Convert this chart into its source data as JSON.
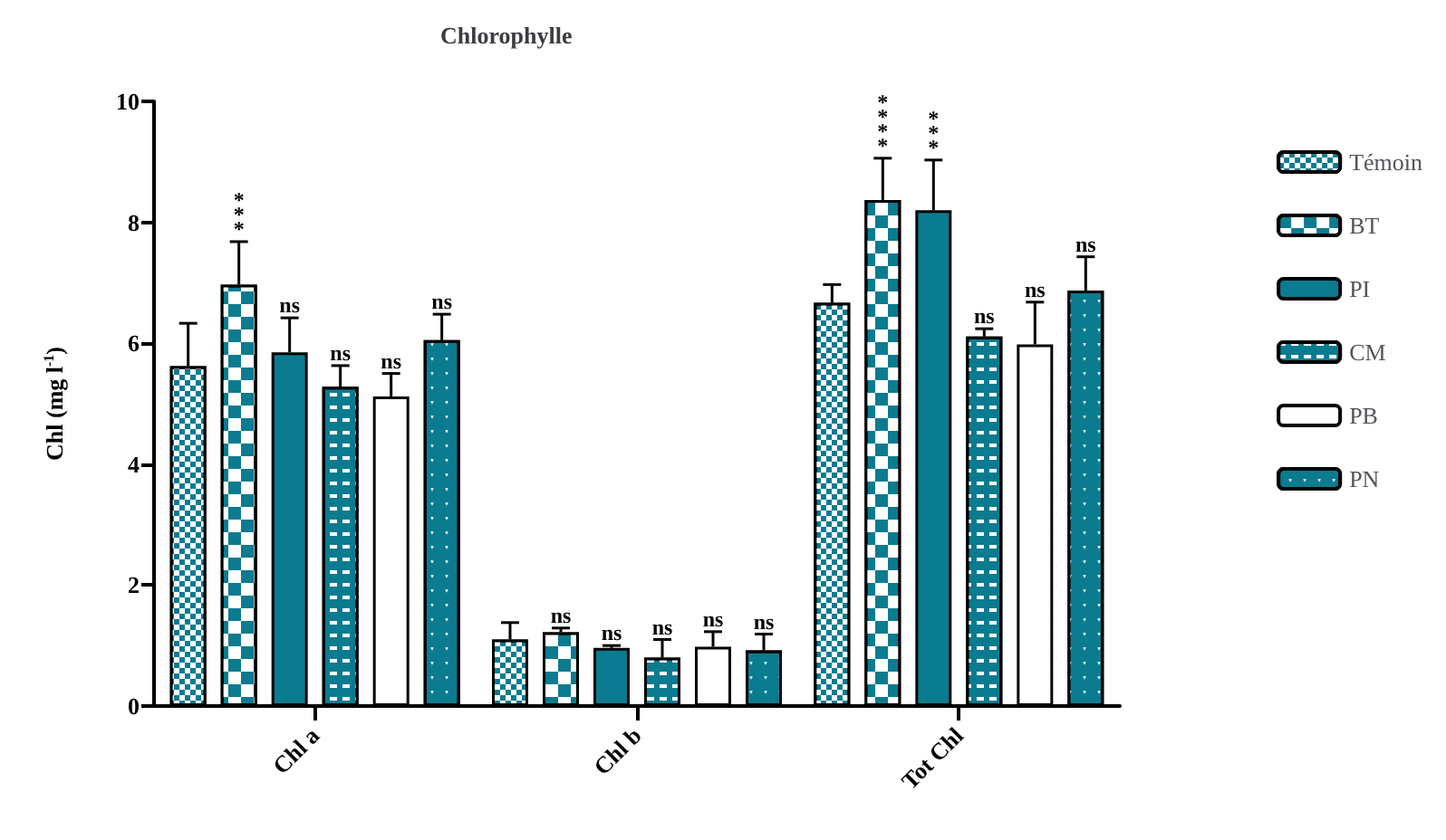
{
  "chart_data": {
    "type": "bar",
    "title": "Chlorophylle",
    "ylabel": "Chl (mg l$^{-1}$)",
    "categories": [
      "Chl a",
      "Chl b",
      "Tot Chl"
    ],
    "series": [
      {
        "name": "Témoin",
        "color": "#0b7b90",
        "values": [
          5.62,
          1.1,
          6.67
        ],
        "errors": [
          0.71,
          0.28,
          0.3
        ],
        "value_labels": [
          null,
          null,
          null
        ]
      },
      {
        "name": "BT",
        "color": "#0b7b90",
        "values": [
          6.97,
          1.22,
          8.37
        ],
        "errors": [
          0.71,
          0.07,
          0.69
        ],
        "value_labels": [
          "***",
          "ns",
          "****"
        ]
      },
      {
        "name": "PI",
        "color": "#0b7b90",
        "values": [
          5.85,
          0.96,
          8.2
        ],
        "errors": [
          0.57,
          0.04,
          0.83
        ],
        "value_labels": [
          "ns",
          "ns",
          "***"
        ]
      },
      {
        "name": "CM",
        "color": "#0b7b90",
        "values": [
          5.28,
          0.8,
          6.11
        ],
        "errors": [
          0.35,
          0.3,
          0.13
        ],
        "value_labels": [
          "ns",
          "ns",
          "ns"
        ]
      },
      {
        "name": "PB",
        "color": "#ffffff",
        "values": [
          5.12,
          0.98,
          5.98
        ],
        "errors": [
          0.38,
          0.25,
          0.7
        ],
        "value_labels": [
          "ns",
          "ns",
          "ns"
        ]
      },
      {
        "name": "PN",
        "color": "#0b7b90",
        "values": [
          6.05,
          0.92,
          6.87
        ],
        "errors": [
          0.43,
          0.27,
          0.56
        ],
        "value_labels": [
          "ns",
          "ns",
          "ns"
        ]
      }
    ],
    "ylim": [
      0,
      10
    ],
    "yticks": [
      0,
      2,
      4,
      6,
      8,
      10
    ],
    "grid": false,
    "legend": "right"
  }
}
